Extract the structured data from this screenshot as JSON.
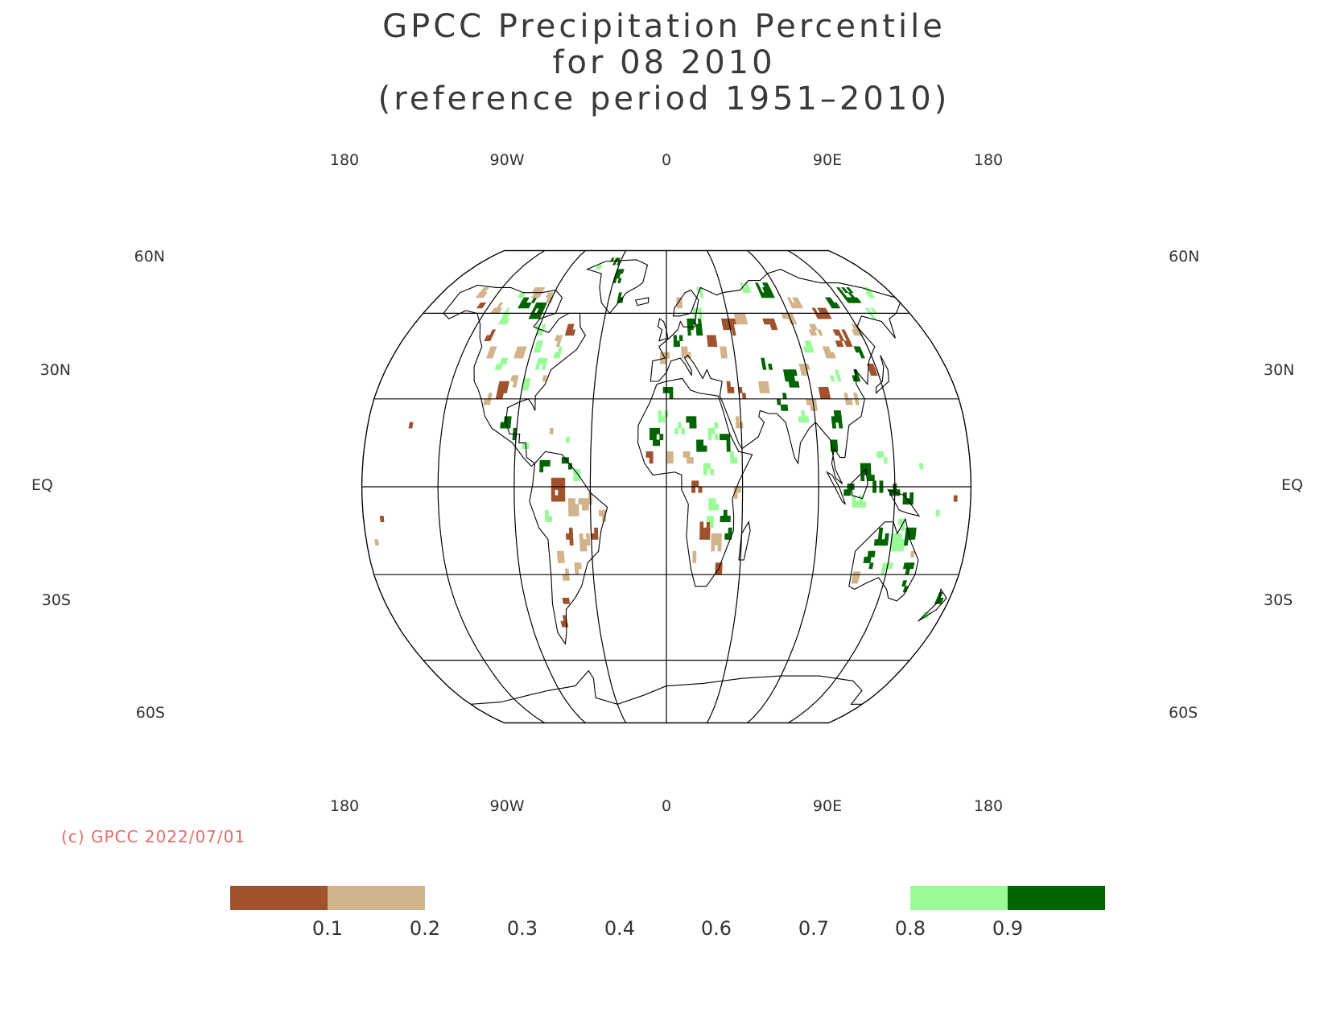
{
  "title": {
    "line1": "GPCC Precipitation Percentile",
    "line2": "for 08 2010",
    "line3": "(reference period 1951–2010)"
  },
  "map": {
    "projection": "Robinson",
    "central_longitude": 0,
    "graticule_step_deg": 30,
    "longitude_labels_top": [
      "180",
      "90W",
      "0",
      "90E",
      "180"
    ],
    "longitude_labels_bottom": [
      "180",
      "90W",
      "0",
      "90E",
      "180"
    ],
    "latitude_labels": [
      "60N",
      "30N",
      "EQ",
      "30S",
      "60S"
    ],
    "colors": {
      "very_dry": "#a0522d",
      "dry": "#d2b48c",
      "wet": "#98fb98",
      "very_wet": "#006400",
      "graticule": "#000000",
      "coastline": "#000000"
    }
  },
  "copyright": "(c) GPCC 2022/07/01",
  "legend": {
    "tick_labels": [
      "0.1",
      "0.2",
      "0.3",
      "0.4",
      "0.6",
      "0.7",
      "0.8",
      "0.9"
    ],
    "boxes": [
      {
        "range": "<0.1",
        "color": "#a0522d"
      },
      {
        "range": "0.1-0.2",
        "color": "#d2b48c"
      },
      {
        "range": "0.8-0.9",
        "color": "#98fb98"
      },
      {
        "range": ">0.9",
        "color": "#006400"
      }
    ]
  }
}
